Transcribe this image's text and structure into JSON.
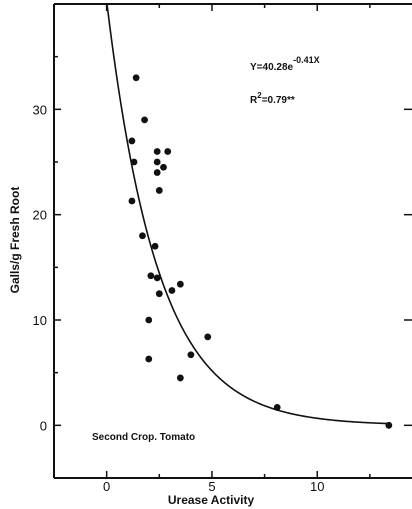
{
  "chart_data": {
    "type": "scatter",
    "title": "",
    "xlabel": "Urease Activity",
    "ylabel": "Galls/g Fresh Root",
    "xlim": [
      -2.5,
      14.5
    ],
    "ylim": [
      -5,
      40
    ],
    "xticks": [
      0,
      5,
      10
    ],
    "yticks": [
      0,
      10,
      20,
      30
    ],
    "grid": false,
    "points": {
      "x": [
        1.4,
        1.8,
        1.2,
        2.4,
        2.9,
        1.3,
        2.4,
        2.7,
        2.4,
        2.5,
        1.2,
        1.7,
        2.3,
        2.1,
        2.4,
        3.5,
        3.1,
        2.5,
        2.0,
        4.8,
        4.0,
        2.0,
        3.5,
        8.1,
        13.4
      ],
      "y": [
        33,
        29,
        27,
        26,
        26,
        25,
        25,
        24.5,
        24,
        22.3,
        21.3,
        18,
        17,
        14.2,
        14,
        13.4,
        12.8,
        12.5,
        10,
        8.4,
        6.7,
        6.3,
        4.5,
        1.7,
        0
      ]
    },
    "fit": {
      "type": "exponential",
      "a": 40.28,
      "b": -0.41
    },
    "annotations": {
      "equation": "Y=40.28e",
      "equation_exponent": "-0.41X",
      "r2_prefix": "R",
      "r2_sup": "2",
      "r2_value": "=0.79**",
      "caption": "Second Crop. Tomato"
    }
  }
}
